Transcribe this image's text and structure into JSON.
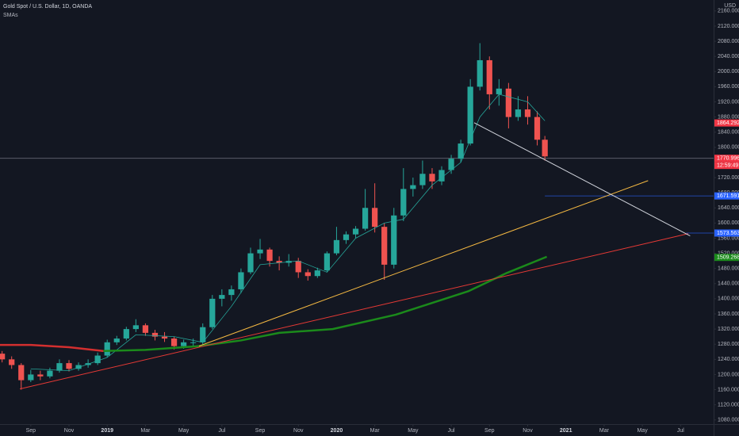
{
  "chart_data": {
    "type": "candlestick",
    "title": "Gold Spot / U.S. Dollar, 1D, OANDA",
    "subtitle": "SMAs",
    "currency": "USD",
    "up_color": "#26a69a",
    "down_color": "#ef5350",
    "grid": false,
    "x": [
      6.5,
      7,
      7.5,
      8,
      8.5,
      9,
      9.5,
      10,
      10.5,
      11,
      11.5,
      12,
      12.5,
      13,
      13.5,
      14,
      14.5,
      15,
      15.5,
      16,
      16.5,
      17,
      17.5,
      18,
      18.5,
      19,
      19.5,
      20,
      20.5,
      21,
      21.5,
      22,
      22.5,
      23,
      23.5,
      24,
      24.5,
      25,
      25.5,
      26,
      26.5,
      27,
      27.5,
      28,
      28.5,
      29,
      29.5,
      30,
      30.5,
      31,
      31.5,
      32,
      32.5,
      33,
      33.5,
      34,
      34.5,
      34.9
    ],
    "open": [
      1255,
      1240,
      1225,
      1185,
      1200,
      1195,
      1210,
      1230,
      1215,
      1225,
      1230,
      1250,
      1285,
      1295,
      1320,
      1330,
      1310,
      1300,
      1295,
      1275,
      1285,
      1285,
      1325,
      1400,
      1410,
      1425,
      1470,
      1520,
      1530,
      1500,
      1495,
      1500,
      1470,
      1460,
      1475,
      1520,
      1555,
      1570,
      1585,
      1640,
      1590,
      1490,
      1620,
      1690,
      1700,
      1730,
      1710,
      1740,
      1770,
      1810,
      1960,
      2030,
      1940,
      1955,
      1880,
      1900,
      1880,
      1820
    ],
    "high": [
      1262,
      1248,
      1230,
      1212,
      1210,
      1218,
      1240,
      1238,
      1232,
      1240,
      1258,
      1292,
      1302,
      1326,
      1346,
      1335,
      1318,
      1312,
      1300,
      1292,
      1295,
      1335,
      1410,
      1425,
      1435,
      1480,
      1535,
      1558,
      1535,
      1512,
      1518,
      1508,
      1478,
      1482,
      1525,
      1590,
      1578,
      1592,
      1690,
      1705,
      1600,
      1640,
      1745,
      1720,
      1765,
      1745,
      1750,
      1780,
      1820,
      1980,
      2075,
      2040,
      1980,
      1970,
      1935,
      1935,
      1895,
      1830
    ],
    "low": [
      1232,
      1215,
      1160,
      1180,
      1185,
      1190,
      1205,
      1208,
      1210,
      1218,
      1225,
      1245,
      1278,
      1290,
      1312,
      1302,
      1290,
      1286,
      1266,
      1268,
      1276,
      1280,
      1320,
      1380,
      1395,
      1415,
      1465,
      1505,
      1485,
      1475,
      1485,
      1455,
      1448,
      1455,
      1470,
      1515,
      1545,
      1560,
      1580,
      1575,
      1450,
      1480,
      1605,
      1670,
      1690,
      1690,
      1700,
      1730,
      1760,
      1805,
      1950,
      1900,
      1910,
      1850,
      1870,
      1860,
      1805,
      1765
    ],
    "close": [
      1240,
      1225,
      1185,
      1200,
      1195,
      1210,
      1230,
      1215,
      1225,
      1230,
      1250,
      1285,
      1295,
      1320,
      1330,
      1310,
      1300,
      1295,
      1275,
      1285,
      1285,
      1325,
      1400,
      1410,
      1425,
      1470,
      1520,
      1530,
      1500,
      1495,
      1500,
      1470,
      1460,
      1475,
      1520,
      1555,
      1570,
      1585,
      1640,
      1590,
      1490,
      1620,
      1690,
      1700,
      1730,
      1710,
      1740,
      1770,
      1810,
      1960,
      2030,
      1940,
      1955,
      1880,
      1900,
      1880,
      1820,
      1776
    ],
    "xlim": [
      6.39,
      43.73
    ],
    "ylim": [
      1069,
      2189
    ],
    "xticks": [
      {
        "value": 8,
        "label": "Sep"
      },
      {
        "value": 10,
        "label": "Nov"
      },
      {
        "value": 12,
        "label": "2019"
      },
      {
        "value": 14,
        "label": "Mar"
      },
      {
        "value": 16,
        "label": "May"
      },
      {
        "value": 18,
        "label": "Jul"
      },
      {
        "value": 20,
        "label": "Sep"
      },
      {
        "value": 22,
        "label": "Nov"
      },
      {
        "value": 24,
        "label": "2020"
      },
      {
        "value": 26,
        "label": "Mar"
      },
      {
        "value": 28,
        "label": "May"
      },
      {
        "value": 30,
        "label": "Jul"
      },
      {
        "value": 32,
        "label": "Sep"
      },
      {
        "value": 34,
        "label": "Nov"
      },
      {
        "value": 36,
        "label": "2021"
      },
      {
        "value": 38,
        "label": "Mar"
      },
      {
        "value": 40,
        "label": "May"
      },
      {
        "value": 42,
        "label": "Jul"
      }
    ],
    "yticks": [
      {
        "value": 1080,
        "label": "1080.000"
      },
      {
        "value": 1120,
        "label": "1120.000"
      },
      {
        "value": 1160,
        "label": "1160.000"
      },
      {
        "value": 1200,
        "label": "1200.000"
      },
      {
        "value": 1240,
        "label": "1240.000"
      },
      {
        "value": 1280,
        "label": "1280.000"
      },
      {
        "value": 1320,
        "label": "1320.000"
      },
      {
        "value": 1360,
        "label": "1360.000"
      },
      {
        "value": 1400,
        "label": "1400.000"
      },
      {
        "value": 1440,
        "label": "1440.000"
      },
      {
        "value": 1480,
        "label": "1480.000"
      },
      {
        "value": 1520,
        "label": "1520.000"
      },
      {
        "value": 1560,
        "label": "1560.000"
      },
      {
        "value": 1600,
        "label": "1600.000"
      },
      {
        "value": 1640,
        "label": "1640.000"
      },
      {
        "value": 1680,
        "label": "1680.000"
      },
      {
        "value": 1720,
        "label": "1720.000"
      },
      {
        "value": 1760,
        "label": "1760.000"
      },
      {
        "value": 1800,
        "label": "1800.000"
      },
      {
        "value": 1840,
        "label": "1840.000"
      },
      {
        "value": 1880,
        "label": "1880.000"
      },
      {
        "value": 1920,
        "label": "1920.000"
      },
      {
        "value": 1960,
        "label": "1960.000"
      },
      {
        "value": 2000,
        "label": "2000.000"
      },
      {
        "value": 2040,
        "label": "2040.000"
      },
      {
        "value": 2080,
        "label": "2080.000"
      },
      {
        "value": 2120,
        "label": "2120.000"
      },
      {
        "value": 2160,
        "label": "2160.000"
      }
    ],
    "lines": [
      {
        "color": "#26a69a",
        "width": 0.8,
        "x": [
          8,
          10,
          12,
          13.5,
          15.5,
          17,
          18.5,
          20,
          22,
          23.5,
          25,
          26.5,
          27.5,
          29,
          30.5,
          31.5,
          32.5,
          34,
          34.9
        ],
        "values": [
          1215,
          1210,
          1245,
          1305,
          1300,
          1285,
          1380,
          1490,
          1500,
          1470,
          1560,
          1600,
          1610,
          1700,
          1760,
          1880,
          1940,
          1920,
          1870
        ]
      },
      {
        "color": "#d32f2f",
        "width": 2.5,
        "x": [
          6.39,
          8,
          10,
          11.8
        ],
        "values": [
          1278,
          1278,
          1272,
          1262
        ]
      },
      {
        "color": "#1b8a1b",
        "width": 2.5,
        "x": [
          11.8,
          14,
          16.8,
          19,
          21,
          23.8,
          27.1,
          30.9,
          32.9,
          35
        ],
        "values": [
          1262,
          1265,
          1275,
          1290,
          1310,
          1320,
          1358,
          1420,
          1468,
          1511
        ]
      },
      {
        "color": "#f5b942",
        "width": 1,
        "x": [
          16.8,
          40.3
        ],
        "values": [
          1275,
          1712
        ]
      },
      {
        "color": "#e53935",
        "width": 1,
        "x": [
          7.43,
          42.4
        ],
        "values": [
          1162,
          1572
        ]
      },
      {
        "color": "#d1d4dc",
        "width": 1,
        "x": [
          31.2,
          42.5
        ],
        "values": [
          1865,
          1566
        ]
      }
    ],
    "levels": [
      {
        "value": 1864.292,
        "color": "#f23645",
        "line": false
      },
      {
        "value": 1770.996,
        "color": "#f23645",
        "line": true,
        "line_color": "#787b86",
        "countdown": "12:59:49"
      },
      {
        "value": 1671.591,
        "color": "#2962ff",
        "line": true,
        "line_color": "#2962ff",
        "from": 34.9
      },
      {
        "value": 1573.563,
        "color": "#2962ff",
        "line": true,
        "line_color": "#2962ff",
        "from": 42.3
      },
      {
        "value": 1509.268,
        "color": "#1b8a1b",
        "line": false
      }
    ]
  }
}
